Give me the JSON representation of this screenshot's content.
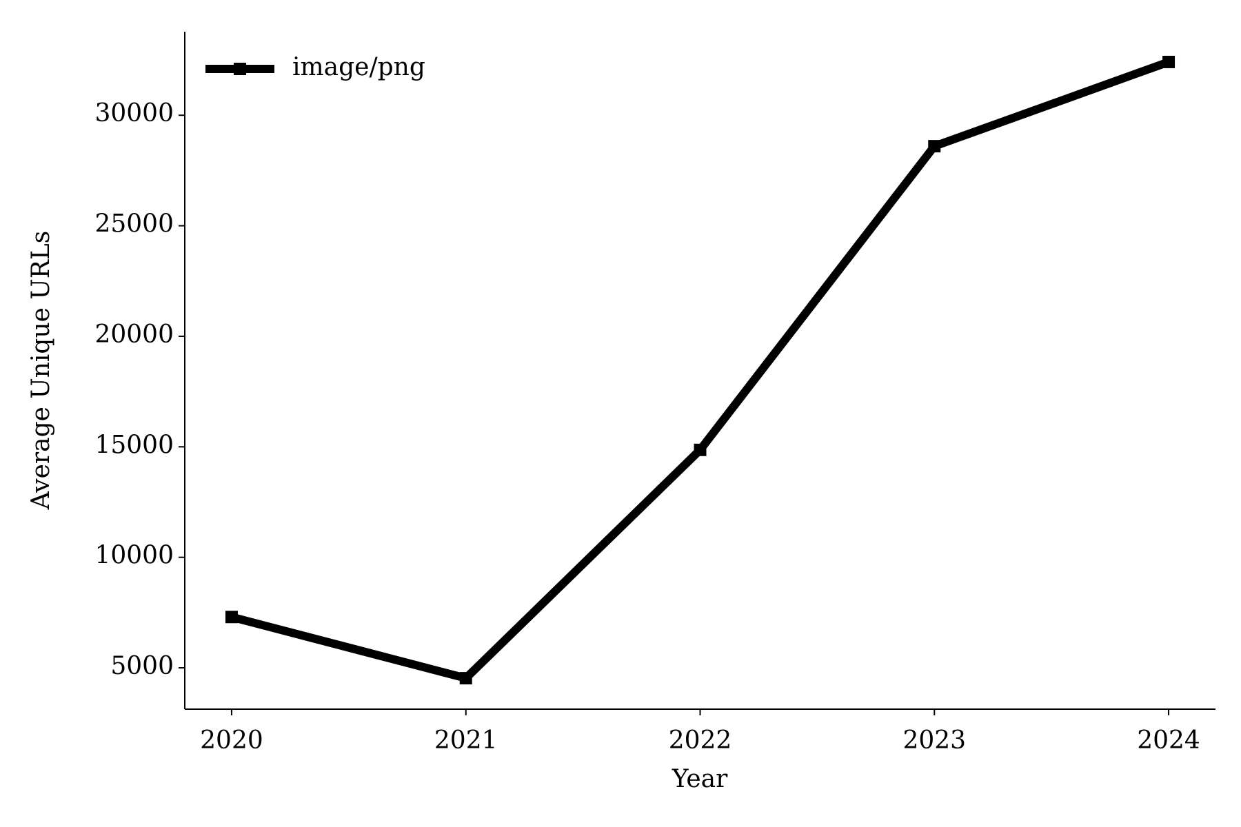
{
  "chart_data": {
    "type": "line",
    "x": [
      2020,
      2021,
      2022,
      2023,
      2024
    ],
    "series": [
      {
        "name": "image/png",
        "color": "#000000",
        "values": [
          7300,
          4530,
          14860,
          28600,
          32410
        ]
      }
    ],
    "xlabel": "Year",
    "ylabel": "Average Unique URLs",
    "xlim": [
      2019.8,
      2024.2
    ],
    "xticks": [
      2020,
      2021,
      2022,
      2023,
      2024
    ],
    "ylim": [
      3130,
      33780
    ],
    "yticks": [
      5000,
      10000,
      15000,
      20000,
      25000,
      30000
    ],
    "legend": "upper left",
    "grid": false
  }
}
